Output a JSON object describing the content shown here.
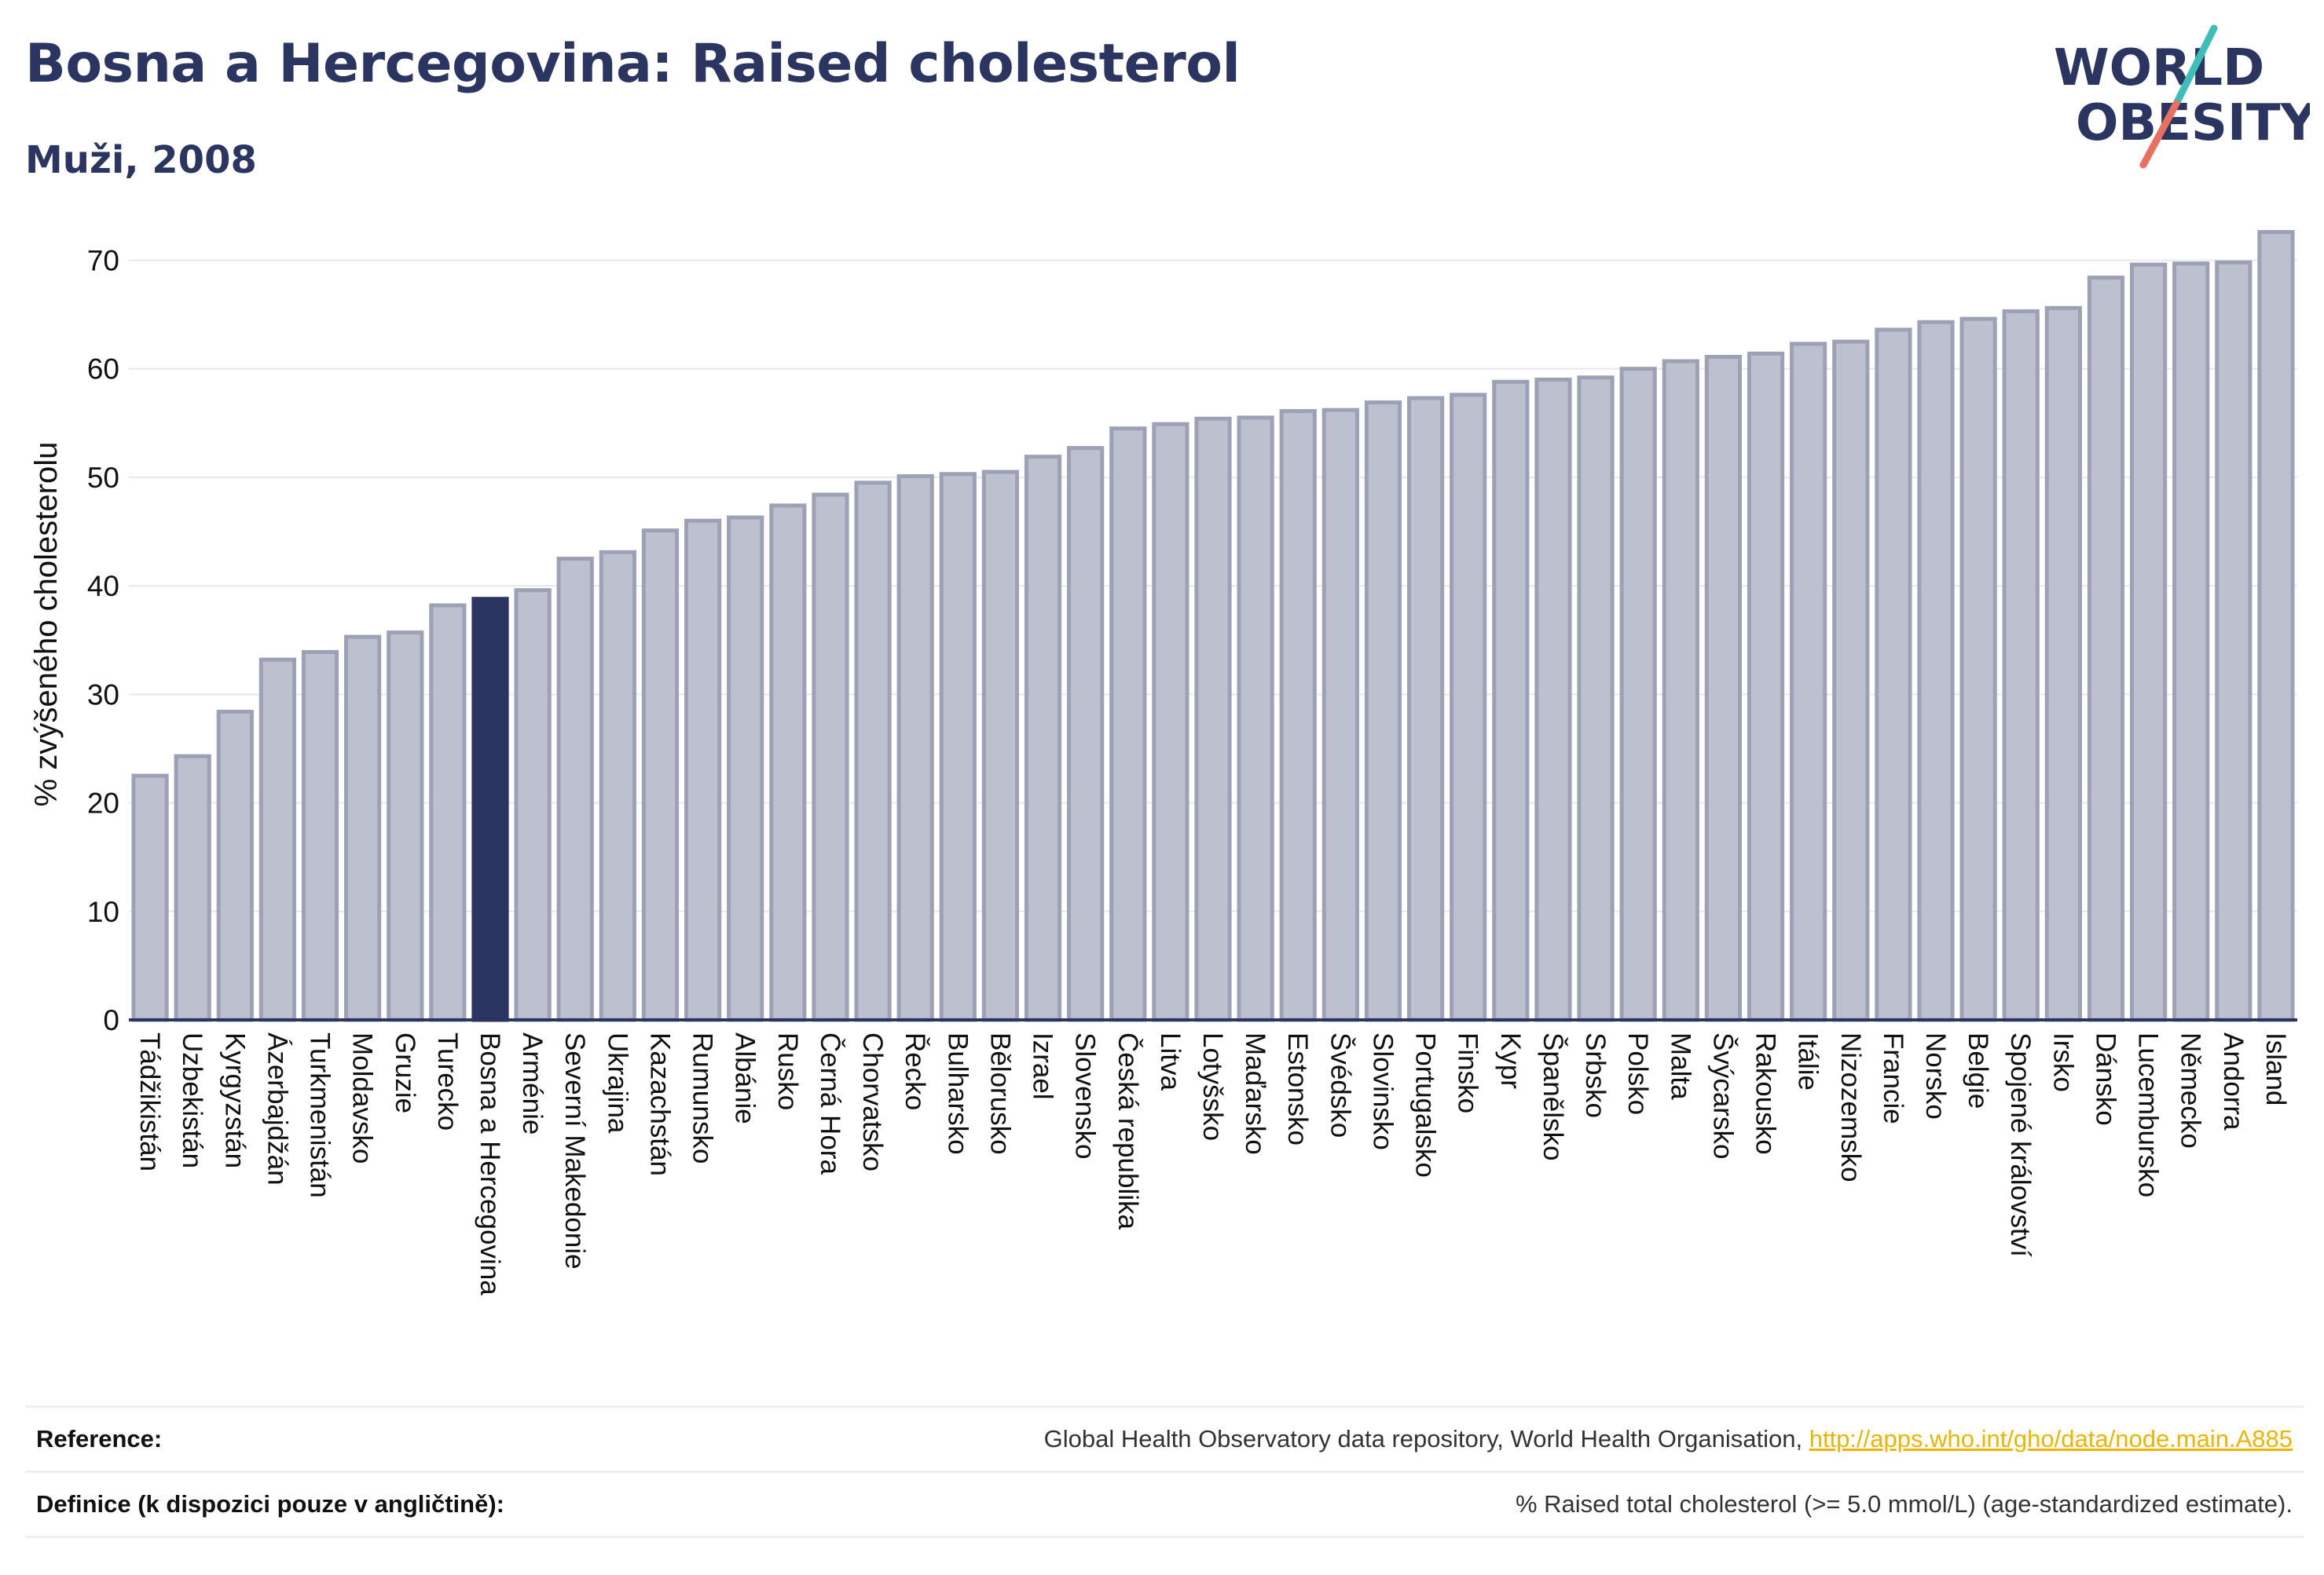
{
  "header": {
    "title": "Bosna a Hercegovina: Raised cholesterol",
    "subtitle": "Muži, 2008"
  },
  "logo": {
    "line1": "WORLD",
    "line2": "OBESITY",
    "brand": "World Obesity"
  },
  "colors": {
    "bar": "#bcc0cf",
    "bar_stroke": "#9ca1b6",
    "highlight": "#2b3561",
    "text": "#2b3561",
    "grid": "#e6e8ef",
    "link": "#f0b400",
    "logo_slash_teal": "#3cbfb8",
    "logo_slash_coral": "#e8705f"
  },
  "chart_data": {
    "type": "bar",
    "ylabel": "% zvýšeného cholesterolu",
    "ylim": [
      0,
      73
    ],
    "yticks": [
      0,
      10,
      20,
      30,
      40,
      50,
      60,
      70
    ],
    "grid": true,
    "highlight": "Bosna a Hercegovina",
    "categories": [
      "Tádžikistán",
      "Uzbekistán",
      "Kyrgyzstán",
      "Ázerbajdžán",
      "Turkmenistán",
      "Moldavsko",
      "Gruzie",
      "Turecko",
      "Bosna a Hercegovina",
      "Arménie",
      "Severní Makedonie",
      "Ukrajina",
      "Kazachstán",
      "Rumunsko",
      "Albánie",
      "Rusko",
      "Černá Hora",
      "Chorvatsko",
      "Řecko",
      "Bulharsko",
      "Bělorusko",
      "Izrael",
      "Slovensko",
      "Česká republika",
      "Litva",
      "Lotyšsko",
      "Maďarsko",
      "Estonsko",
      "Švédsko",
      "Slovinsko",
      "Portugalsko",
      "Finsko",
      "Kypr",
      "Španělsko",
      "Srbsko",
      "Polsko",
      "Malta",
      "Švýcarsko",
      "Rakousko",
      "Itálie",
      "Nizozemsko",
      "Francie",
      "Norsko",
      "Belgie",
      "Spojené království",
      "Irsko",
      "Dánsko",
      "Lucembursko",
      "Německo",
      "Andorra",
      "Island"
    ],
    "values": [
      22.5,
      24.3,
      28.4,
      33.2,
      33.9,
      35.3,
      35.7,
      38.2,
      38.8,
      39.6,
      42.5,
      43.1,
      45.1,
      46.0,
      46.3,
      47.4,
      48.4,
      49.5,
      50.1,
      50.3,
      50.5,
      51.9,
      52.7,
      54.5,
      54.9,
      55.4,
      55.5,
      56.1,
      56.2,
      56.9,
      57.3,
      57.6,
      58.8,
      59.0,
      59.2,
      60.0,
      60.7,
      61.1,
      61.4,
      62.3,
      62.5,
      63.6,
      64.3,
      64.6,
      65.3,
      65.6,
      68.4,
      69.6,
      69.7,
      69.8,
      72.6
    ]
  },
  "footer": {
    "reference_label": "Reference:",
    "reference_text": "Global Health Observatory data repository, World Health Organisation, ",
    "reference_link": "http://apps.who.int/gho/data/node.main.A885",
    "definition_label": "Definice (k dispozici pouze v angličtině):",
    "definition_text": "% Raised total cholesterol (>= 5.0 mmol/L) (age-standardized estimate)."
  }
}
